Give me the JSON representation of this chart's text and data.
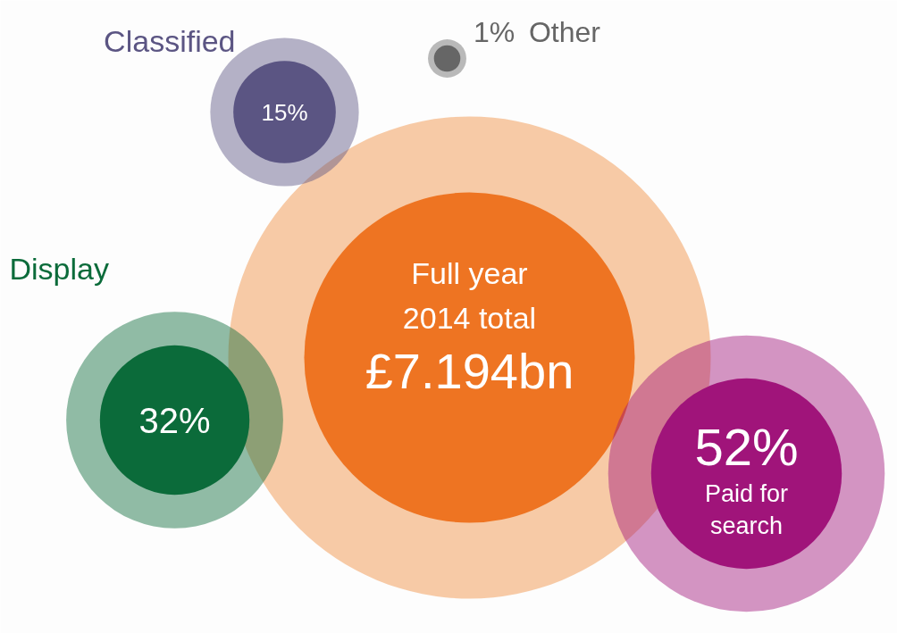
{
  "chart_data": {
    "type": "other",
    "title": "Full year 2014 total",
    "annotations": [
      "£7.194bn"
    ],
    "categories": [
      "Display",
      "Classified",
      "Other",
      "Paid for search"
    ],
    "values": [
      32,
      15,
      1,
      52
    ],
    "value_labels": [
      "32%",
      "15%",
      "1%",
      "52%"
    ],
    "colors": [
      "#0b6b3a",
      "#5b5583",
      "#666666",
      "#a0147a"
    ]
  }
}
